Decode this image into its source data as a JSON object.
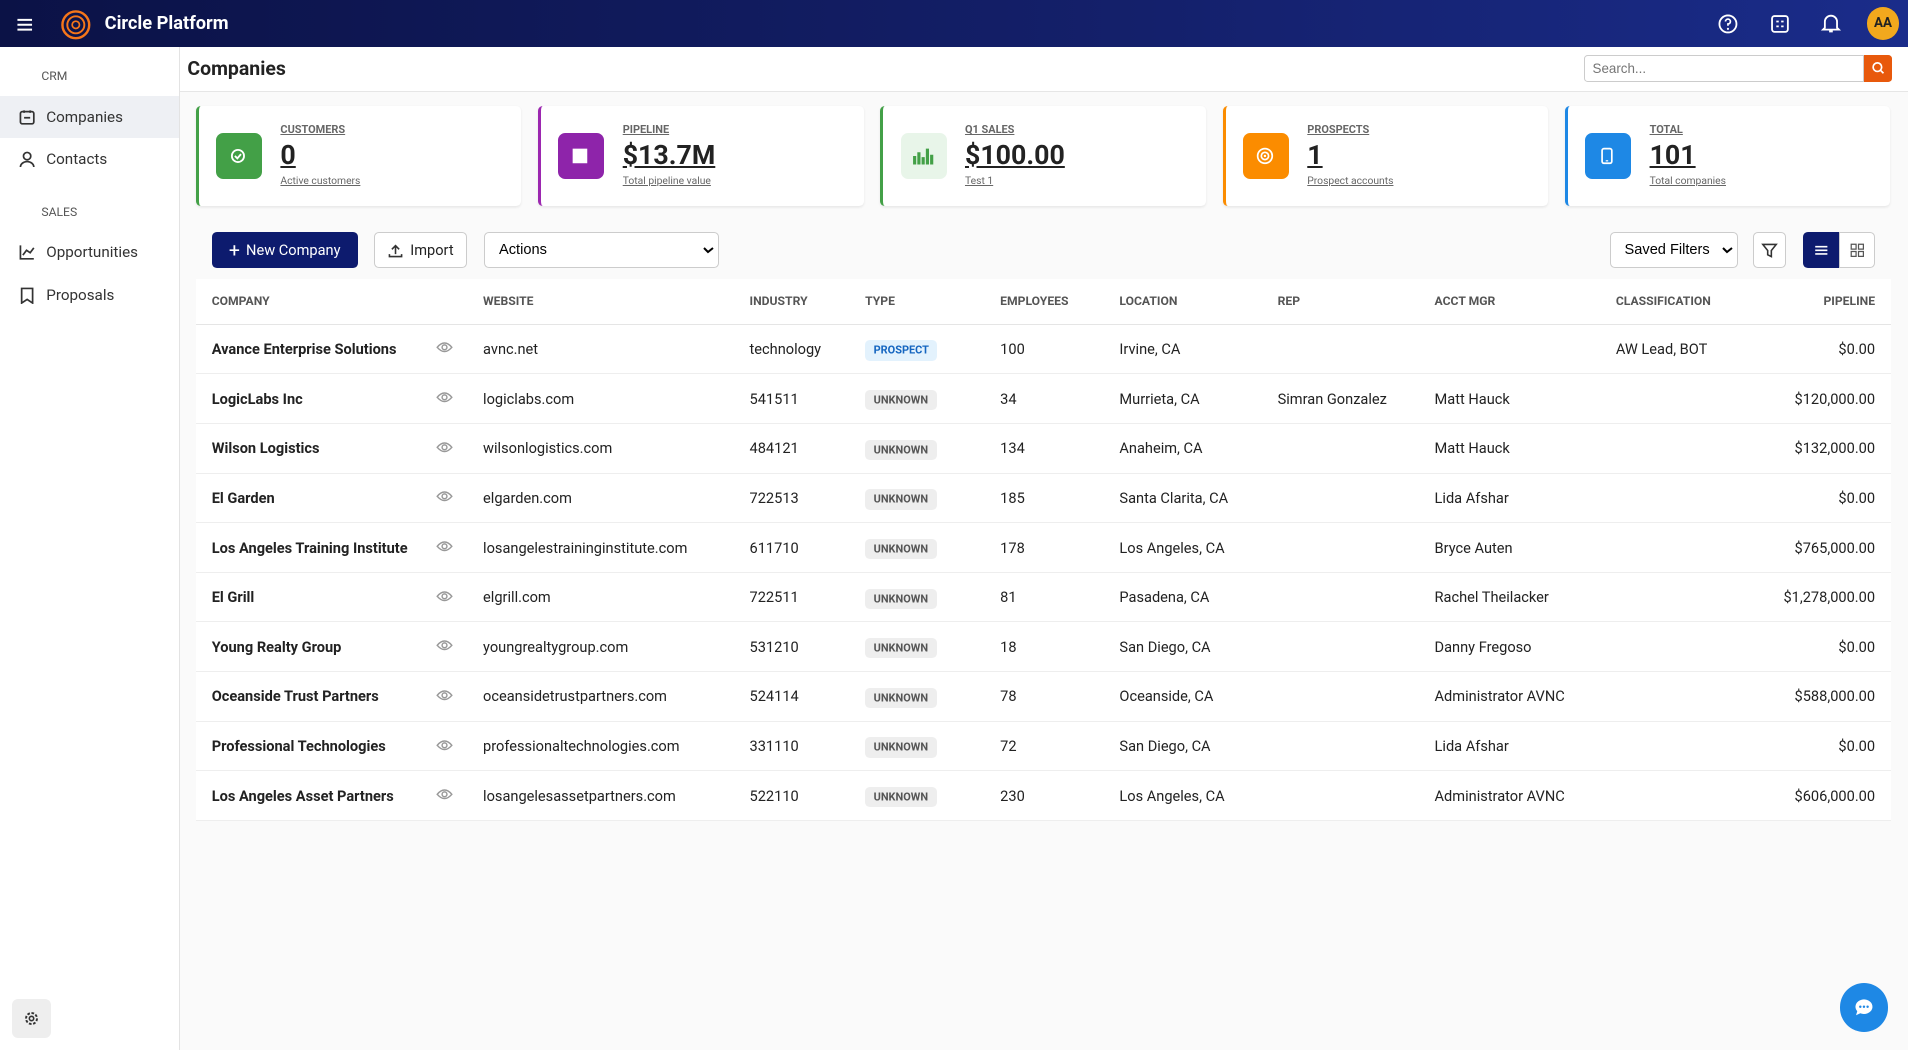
{
  "header": {
    "app_name": "Circle Platform",
    "avatar": "AA"
  },
  "sidebar": {
    "sections": [
      {
        "title": "CRM",
        "items": [
          "Companies",
          "Contacts"
        ]
      },
      {
        "title": "SALES",
        "items": [
          "Opportunities",
          "Proposals"
        ]
      }
    ]
  },
  "page": {
    "title": "Companies",
    "search_placeholder": "Search..."
  },
  "stats": [
    {
      "label": "CUSTOMERS",
      "value": "0",
      "sub": "Active customers",
      "color": "#43a047",
      "icon_bg": "#43a047"
    },
    {
      "label": "PIPELINE",
      "value": "$13.7M",
      "sub": "Total pipeline value",
      "color": "#9c27b0",
      "icon_bg": "#8e24aa"
    },
    {
      "label": "Q1 SALES",
      "value": "$100.00",
      "sub": "Test 1",
      "color": "#43a047",
      "icon_bg": "#e8f5e9"
    },
    {
      "label": "PROSPECTS",
      "value": "1",
      "sub": "Prospect accounts",
      "color": "#fb8c00",
      "icon_bg": "#fb8c00"
    },
    {
      "label": "TOTAL",
      "value": "101",
      "sub": "Total companies",
      "color": "#1e88e5",
      "icon_bg": "#1e88e5"
    }
  ],
  "toolbar": {
    "new_button": "New Company",
    "import_button": "Import",
    "actions": "Actions",
    "saved_filters": "Saved Filters"
  },
  "table": {
    "columns": [
      "COMPANY",
      "WEBSITE",
      "INDUSTRY",
      "TYPE",
      "EMPLOYEES",
      "LOCATION",
      "REP",
      "ACCT MGR",
      "CLASSIFICATION",
      "PIPELINE"
    ],
    "badge_colors": {
      "PROSPECT": {
        "bg": "#e3f2fd",
        "fg": "#1565c0"
      },
      "UNKNOWN": {
        "bg": "#eeeeee",
        "fg": "#555555"
      }
    },
    "rows": [
      [
        "Avance Enterprise Solutions",
        "avnc.net",
        "technology",
        "PROSPECT",
        "100",
        "Irvine, CA",
        null,
        null,
        "AW Lead, BOT",
        "$0.00"
      ],
      [
        "LogicLabs Inc",
        "logiclabs.com",
        "541511",
        "UNKNOWN",
        "34",
        "Murrieta, CA",
        "Simran Gonzalez",
        "Matt Hauck",
        null,
        "$120,000.00"
      ],
      [
        "Wilson Logistics",
        "wilsonlogistics.com",
        "484121",
        "UNKNOWN",
        "134",
        "Anaheim, CA",
        null,
        "Matt Hauck",
        null,
        "$132,000.00"
      ],
      [
        "El Garden",
        "elgarden.com",
        "722513",
        "UNKNOWN",
        "185",
        "Santa Clarita, CA",
        null,
        "Lida Afshar",
        null,
        "$0.00"
      ],
      [
        "Los Angeles Training Institute",
        "losangelestraininginstitute.com",
        "611710",
        "UNKNOWN",
        "178",
        "Los Angeles, CA",
        null,
        "Bryce Auten",
        null,
        "$765,000.00"
      ],
      [
        "El Grill",
        "elgrill.com",
        "722511",
        "UNKNOWN",
        "81",
        "Pasadena, CA",
        null,
        "Rachel Theilacker",
        null,
        "$1,278,000.00"
      ],
      [
        "Young Realty Group",
        "youngrealtygroup.com",
        "531210",
        "UNKNOWN",
        "18",
        "San Diego, CA",
        null,
        "Danny Fregoso",
        null,
        "$0.00"
      ],
      [
        "Oceanside Trust Partners",
        "oceansidetrustpartners.com",
        "524114",
        "UNKNOWN",
        "78",
        "Oceanside, CA",
        null,
        "Administrator AVNC",
        null,
        "$588,000.00"
      ],
      [
        "Professional Technologies",
        "professionaltechnologies.com",
        "331110",
        "UNKNOWN",
        "72",
        "San Diego, CA",
        null,
        "Lida Afshar",
        null,
        "$0.00"
      ],
      [
        "Los Angeles Asset Partners",
        "losangelesassetpartners.com",
        "522110",
        "UNKNOWN",
        "230",
        "Los Angeles, CA",
        null,
        "Administrator AVNC",
        null,
        "$606,000.00"
      ]
    ]
  }
}
